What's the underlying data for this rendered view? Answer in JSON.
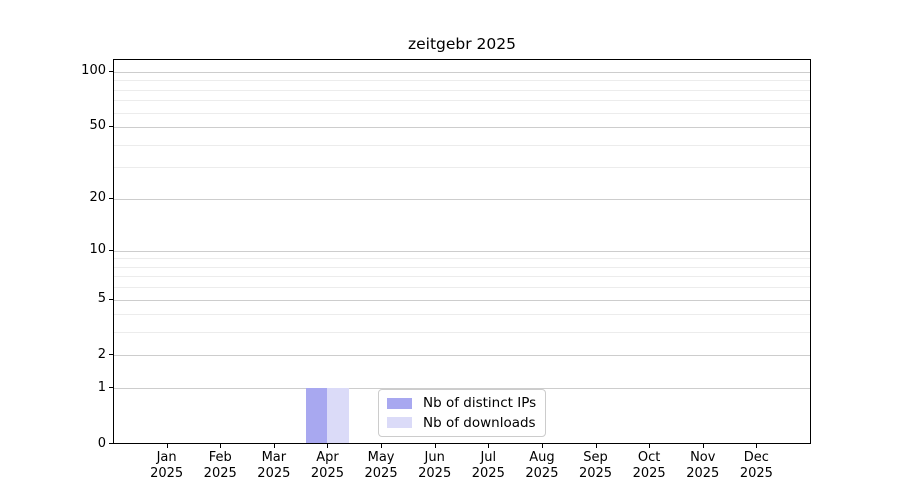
{
  "chart_data": {
    "type": "bar",
    "title": "zeitgebr 2025",
    "categories": [
      "Jan",
      "Feb",
      "Mar",
      "Apr",
      "May",
      "Jun",
      "Jul",
      "Aug",
      "Sep",
      "Oct",
      "Nov",
      "Dec"
    ],
    "year_label": "2025",
    "series": [
      {
        "name": "Nb of distinct IPs",
        "color": "#a8a8f0",
        "values": [
          0,
          0,
          0,
          1,
          0,
          0,
          0,
          0,
          0,
          0,
          0,
          0
        ]
      },
      {
        "name": "Nb of downloads",
        "color": "#dbdbf8",
        "values": [
          0,
          0,
          0,
          1,
          0,
          0,
          0,
          0,
          0,
          0,
          0,
          0
        ]
      }
    ],
    "xlabel": "",
    "ylabel": "",
    "yscale": "log10(value+1)",
    "ylim": [
      0,
      116
    ],
    "yticks_major": [
      0,
      1,
      2,
      5,
      10,
      20,
      50,
      100
    ],
    "yticks_minor": [
      3,
      4,
      6,
      7,
      8,
      9,
      30,
      40,
      60,
      70,
      80,
      90
    ],
    "grid": true,
    "legend_position": "inside bottom center",
    "grid_major_color": "#cdcdcd",
    "grid_minor_color": "#ececec"
  }
}
